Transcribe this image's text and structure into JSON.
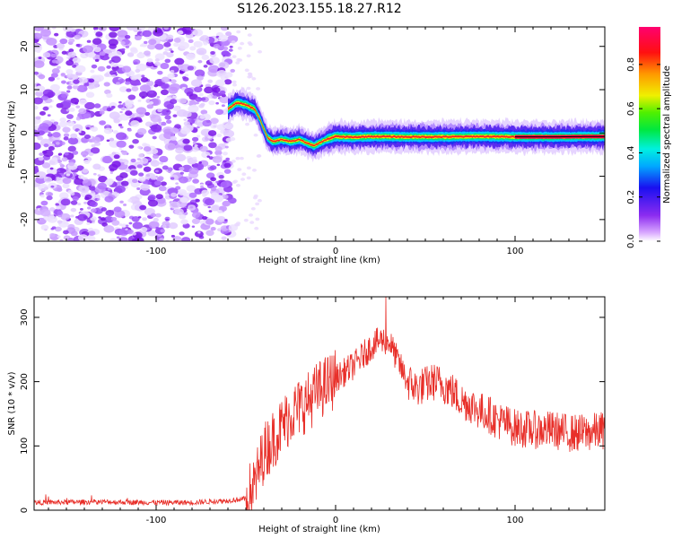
{
  "title": "S126.2023.155.18.27.R12",
  "chart_data": [
    {
      "type": "heatmap",
      "xlabel": "Height of straight line (km)",
      "ylabel": "Frequency (Hz)",
      "xlim": [
        -168,
        150
      ],
      "ylim": [
        -25,
        24.5
      ],
      "xticks": [
        -100,
        0,
        100
      ],
      "yticks": [
        -20,
        -10,
        0,
        10,
        20
      ],
      "grid": false,
      "colorbar": {
        "label": "Normalized spectral amplitude",
        "range": [
          0.0,
          0.97
        ],
        "ticks": [
          "0.0",
          "0.2",
          "0.4",
          "0.6",
          "0.8"
        ],
        "colormap": "rainbow (white-violet-blue-cyan-green-yellow-red-magenta)"
      },
      "ridge_frequency": {
        "x": [
          -60,
          -55,
          -50,
          -45,
          -42,
          -40,
          -38,
          -35,
          -30,
          -25,
          -20,
          -15,
          -12,
          -10,
          -5,
          0,
          10,
          20,
          40,
          60,
          80,
          100,
          120,
          150
        ],
        "y": [
          5.5,
          7,
          6.5,
          5.5,
          3,
          1,
          -1,
          -2,
          -1.5,
          -2,
          -1.5,
          -2.5,
          -3,
          -2.5,
          -1.5,
          -0.8,
          -1,
          -0.8,
          -0.9,
          -0.9,
          -0.8,
          -0.9,
          -0.9,
          -0.8
        ]
      },
      "noise_region_x": [
        -168,
        -57
      ]
    },
    {
      "type": "line",
      "xlabel": "Height of straight line (km)",
      "ylabel": "SNR (10 * v/v)",
      "xlim": [
        -168,
        150
      ],
      "ylim": [
        0,
        332
      ],
      "xticks": [
        -100,
        0,
        100
      ],
      "yticks": [
        0,
        100,
        200,
        300
      ],
      "grid": false,
      "series_color": "#e8302a",
      "envelope": {
        "x": [
          -168,
          -130,
          -100,
          -80,
          -60,
          -50,
          -45,
          -40,
          -35,
          -30,
          -25,
          -20,
          -15,
          -10,
          -5,
          0,
          5,
          10,
          15,
          20,
          25,
          30,
          35,
          40,
          45,
          50,
          55,
          60,
          65,
          70,
          75,
          80,
          85,
          90,
          95,
          100,
          110,
          120,
          130,
          140,
          150
        ],
        "y": [
          12,
          13,
          12,
          12,
          15,
          18,
          40,
          90,
          110,
          130,
          150,
          160,
          170,
          185,
          195,
          205,
          215,
          225,
          240,
          255,
          265,
          262,
          230,
          200,
          190,
          195,
          200,
          195,
          185,
          170,
          165,
          155,
          150,
          140,
          135,
          128,
          125,
          125,
          120,
          120,
          125
        ]
      },
      "peak": {
        "x": 28,
        "y": 332
      }
    }
  ]
}
